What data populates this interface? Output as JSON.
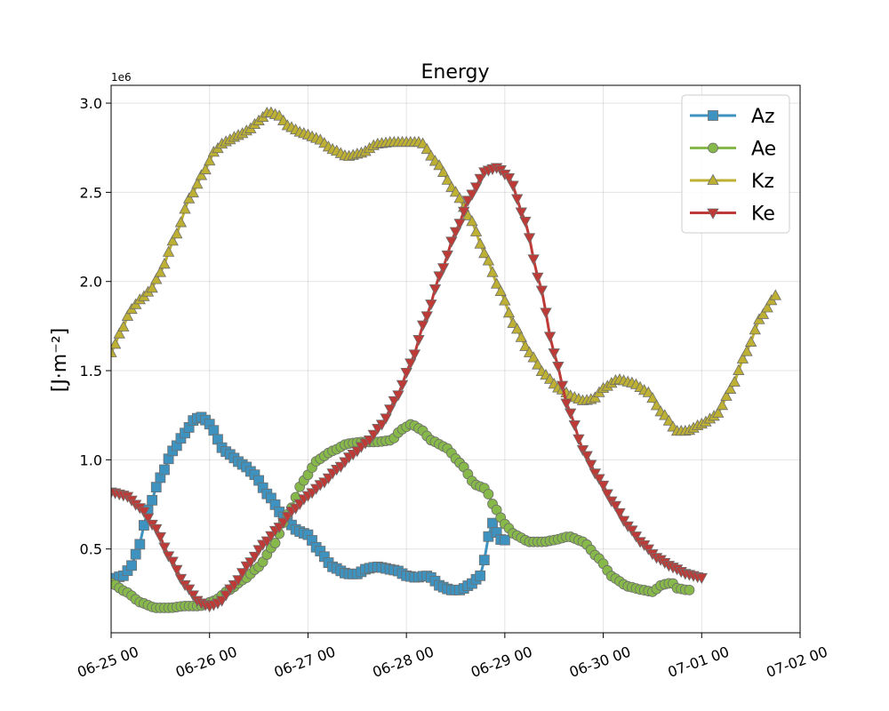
{
  "chart_data": {
    "type": "line",
    "title": "Energy",
    "ylabel": "[J·m⁻²]",
    "y_offset_label": "1e6",
    "y_scale": 1000000,
    "xlim": [
      "06-25 00",
      "07-02 00"
    ],
    "ylim": [
      0.03,
      3.1
    ],
    "x_ticks": [
      "06-25 00",
      "06-26 00",
      "06-27 00",
      "06-28 00",
      "06-29 00",
      "06-30 00",
      "07-01 00",
      "07-02 00"
    ],
    "y_ticks": [
      0.5,
      1.0,
      1.5,
      2.0,
      2.5,
      3.0
    ],
    "y_tick_labels": [
      "0.5",
      "1.0",
      "1.5",
      "2.0",
      "2.5",
      "3.0"
    ],
    "grid": true,
    "legend_position": "top-right",
    "series": [
      {
        "name": "Az",
        "color": "#3e92bf",
        "marker": "square",
        "points": [
          [
            0,
            0.33
          ],
          [
            0.25,
            0.35
          ],
          [
            0.4,
            0.4
          ],
          [
            0.55,
            0.5
          ],
          [
            0.75,
            0.72
          ],
          [
            1.0,
            0.9
          ],
          [
            1.25,
            1.05
          ],
          [
            1.5,
            1.15
          ],
          [
            1.7,
            1.23
          ],
          [
            1.85,
            1.24
          ],
          [
            2.0,
            1.2
          ],
          [
            2.3,
            1.05
          ],
          [
            2.7,
            0.97
          ],
          [
            2.9,
            0.92
          ],
          [
            3.2,
            0.8
          ],
          [
            3.5,
            0.68
          ],
          [
            3.8,
            0.6
          ],
          [
            4.0,
            0.58
          ],
          [
            4.2,
            0.5
          ],
          [
            4.5,
            0.4
          ],
          [
            4.8,
            0.36
          ],
          [
            5.0,
            0.36
          ],
          [
            5.2,
            0.39
          ],
          [
            5.4,
            0.4
          ],
          [
            5.8,
            0.38
          ],
          [
            6.0,
            0.35
          ],
          [
            6.2,
            0.34
          ],
          [
            6.4,
            0.35
          ],
          [
            6.5,
            0.34
          ],
          [
            6.7,
            0.29
          ],
          [
            6.9,
            0.27
          ],
          [
            7.1,
            0.27
          ],
          [
            7.3,
            0.3
          ],
          [
            7.5,
            0.35
          ],
          [
            7.6,
            0.45
          ],
          [
            7.7,
            0.62
          ],
          [
            7.8,
            0.67
          ],
          [
            7.85,
            0.56
          ],
          [
            7.95,
            0.55
          ],
          [
            8.0,
            0.55
          ]
        ]
      },
      {
        "name": "Ae",
        "color": "#87b84a",
        "marker": "circle",
        "points": [
          [
            0,
            0.31
          ],
          [
            0.3,
            0.26
          ],
          [
            0.6,
            0.2
          ],
          [
            0.9,
            0.17
          ],
          [
            1.2,
            0.17
          ],
          [
            1.5,
            0.18
          ],
          [
            1.8,
            0.18
          ],
          [
            2.1,
            0.21
          ],
          [
            2.4,
            0.27
          ],
          [
            2.7,
            0.33
          ],
          [
            3.0,
            0.4
          ],
          [
            3.3,
            0.52
          ],
          [
            3.6,
            0.7
          ],
          [
            3.9,
            0.88
          ],
          [
            4.2,
            1.0
          ],
          [
            4.5,
            1.05
          ],
          [
            4.8,
            1.09
          ],
          [
            5.1,
            1.1
          ],
          [
            5.4,
            1.1
          ],
          [
            5.7,
            1.11
          ],
          [
            5.9,
            1.17
          ],
          [
            6.1,
            1.2
          ],
          [
            6.3,
            1.17
          ],
          [
            6.5,
            1.11
          ],
          [
            6.8,
            1.07
          ],
          [
            7.1,
            0.98
          ],
          [
            7.4,
            0.86
          ],
          [
            7.6,
            0.84
          ],
          [
            7.8,
            0.73
          ],
          [
            8.0,
            0.64
          ],
          [
            8.2,
            0.58
          ],
          [
            8.5,
            0.54
          ],
          [
            8.8,
            0.54
          ],
          [
            9.0,
            0.55
          ],
          [
            9.3,
            0.57
          ],
          [
            9.6,
            0.54
          ],
          [
            9.9,
            0.45
          ],
          [
            10.2,
            0.34
          ],
          [
            10.5,
            0.29
          ],
          [
            10.8,
            0.27
          ],
          [
            11.0,
            0.26
          ],
          [
            11.2,
            0.3
          ],
          [
            11.4,
            0.31
          ],
          [
            11.5,
            0.28
          ],
          [
            11.7,
            0.27
          ],
          [
            11.8,
            0.27
          ]
        ]
      },
      {
        "name": "Kz",
        "color": "#bdb032",
        "marker": "triangle-up",
        "points": [
          [
            0,
            1.6
          ],
          [
            0.2,
            1.72
          ],
          [
            0.4,
            1.84
          ],
          [
            0.6,
            1.9
          ],
          [
            0.8,
            1.95
          ],
          [
            1.0,
            2.05
          ],
          [
            1.3,
            2.25
          ],
          [
            1.6,
            2.47
          ],
          [
            1.9,
            2.62
          ],
          [
            2.1,
            2.73
          ],
          [
            2.3,
            2.78
          ],
          [
            2.6,
            2.82
          ],
          [
            2.8,
            2.85
          ],
          [
            3.0,
            2.9
          ],
          [
            3.2,
            2.95
          ],
          [
            3.4,
            2.93
          ],
          [
            3.6,
            2.87
          ],
          [
            3.9,
            2.83
          ],
          [
            4.2,
            2.8
          ],
          [
            4.5,
            2.74
          ],
          [
            4.8,
            2.7
          ],
          [
            5.1,
            2.72
          ],
          [
            5.4,
            2.77
          ],
          [
            5.7,
            2.78
          ],
          [
            6.0,
            2.78
          ],
          [
            6.3,
            2.78
          ],
          [
            6.6,
            2.67
          ],
          [
            7.0,
            2.5
          ],
          [
            7.3,
            2.35
          ],
          [
            7.6,
            2.15
          ],
          [
            7.9,
            1.95
          ],
          [
            8.2,
            1.75
          ],
          [
            8.5,
            1.6
          ],
          [
            8.8,
            1.48
          ],
          [
            9.1,
            1.4
          ],
          [
            9.4,
            1.35
          ],
          [
            9.6,
            1.33
          ],
          [
            9.8,
            1.34
          ],
          [
            10.0,
            1.4
          ],
          [
            10.3,
            1.45
          ],
          [
            10.6,
            1.43
          ],
          [
            10.9,
            1.38
          ],
          [
            11.2,
            1.26
          ],
          [
            11.5,
            1.16
          ],
          [
            11.7,
            1.16
          ],
          [
            12.0,
            1.2
          ],
          [
            12.3,
            1.25
          ],
          [
            12.6,
            1.4
          ],
          [
            12.9,
            1.6
          ],
          [
            13.2,
            1.8
          ],
          [
            13.5,
            1.92
          ]
        ]
      },
      {
        "name": "Ke",
        "color": "#be3a36",
        "marker": "triangle-down",
        "points": [
          [
            0,
            0.82
          ],
          [
            0.3,
            0.8
          ],
          [
            0.6,
            0.73
          ],
          [
            0.9,
            0.62
          ],
          [
            1.2,
            0.45
          ],
          [
            1.5,
            0.3
          ],
          [
            1.8,
            0.2
          ],
          [
            2.0,
            0.18
          ],
          [
            2.2,
            0.2
          ],
          [
            2.5,
            0.3
          ],
          [
            2.8,
            0.42
          ],
          [
            3.1,
            0.53
          ],
          [
            3.4,
            0.62
          ],
          [
            3.7,
            0.72
          ],
          [
            4.0,
            0.8
          ],
          [
            4.3,
            0.87
          ],
          [
            4.6,
            0.95
          ],
          [
            4.9,
            1.03
          ],
          [
            5.2,
            1.1
          ],
          [
            5.5,
            1.2
          ],
          [
            5.8,
            1.35
          ],
          [
            6.1,
            1.55
          ],
          [
            6.4,
            1.8
          ],
          [
            6.7,
            2.05
          ],
          [
            7.0,
            2.28
          ],
          [
            7.3,
            2.48
          ],
          [
            7.6,
            2.62
          ],
          [
            7.85,
            2.64
          ],
          [
            8.1,
            2.58
          ],
          [
            8.4,
            2.35
          ],
          [
            8.7,
            2.0
          ],
          [
            9.0,
            1.6
          ],
          [
            9.3,
            1.28
          ],
          [
            9.6,
            1.05
          ],
          [
            9.9,
            0.9
          ],
          [
            10.2,
            0.76
          ],
          [
            10.5,
            0.63
          ],
          [
            10.8,
            0.53
          ],
          [
            11.1,
            0.45
          ],
          [
            11.4,
            0.4
          ],
          [
            11.7,
            0.36
          ],
          [
            12.0,
            0.34
          ]
        ]
      }
    ]
  }
}
